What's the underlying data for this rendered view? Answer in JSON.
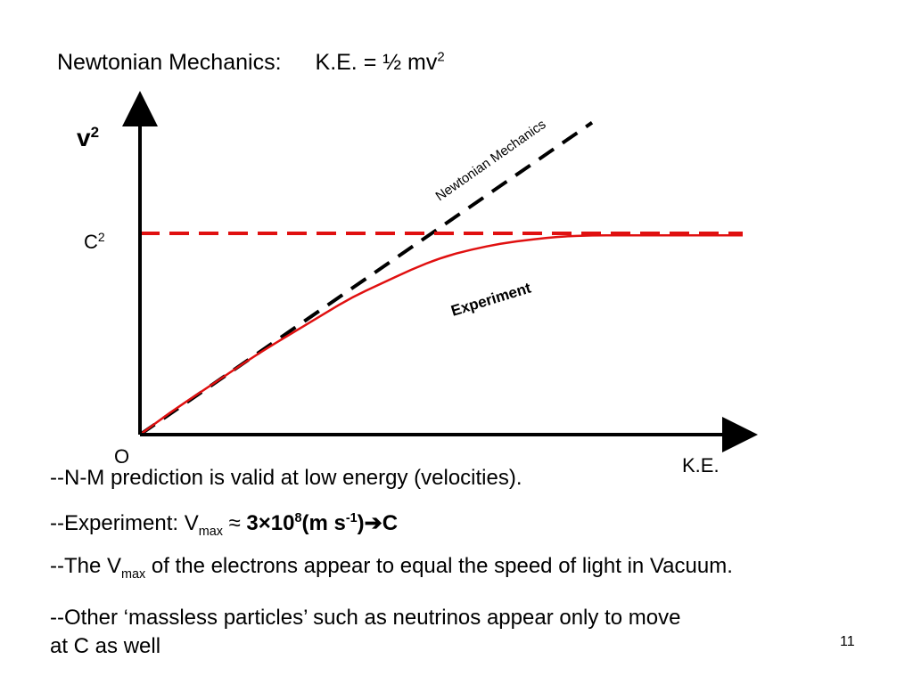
{
  "title": {
    "left": "Newtonian Mechanics:",
    "formula_main": "K.E. = ½ mv",
    "formula_exp": "2"
  },
  "chart_data": {
    "type": "line",
    "title": "",
    "xlabel": "K.E.",
    "ylabel_base": "v",
    "ylabel_exp": "2",
    "origin_label": "O",
    "ytick_label_base": "C",
    "ytick_label_exp": "2",
    "c2_level": 1.0,
    "xlim": [
      0,
      1.0
    ],
    "ylim": [
      0,
      1.55
    ],
    "series": [
      {
        "name": "Newtonian Mechanics",
        "style": "dashed",
        "color": "#000000",
        "x": [
          0,
          0.75
        ],
        "y": [
          0,
          1.55
        ]
      },
      {
        "name": "Experiment",
        "style": "solid",
        "color": "#e01010",
        "x": [
          0,
          0.05,
          0.1,
          0.15,
          0.2,
          0.25,
          0.3,
          0.35,
          0.4,
          0.45,
          0.5,
          0.55,
          0.6,
          0.65,
          0.7,
          0.75,
          0.8,
          0.85,
          0.9,
          1.0
        ],
        "y": [
          0,
          0.11,
          0.21,
          0.31,
          0.41,
          0.5,
          0.59,
          0.68,
          0.75,
          0.82,
          0.88,
          0.92,
          0.95,
          0.97,
          0.985,
          0.99,
          0.99,
          0.99,
          0.99,
          0.99
        ]
      },
      {
        "name": "C2 limit",
        "style": "dashed",
        "color": "#e01010",
        "x": [
          0,
          1.0
        ],
        "y": [
          1.0,
          1.0
        ]
      }
    ],
    "annotations": [
      {
        "text": "Newtonian Mechanics",
        "series": 0
      },
      {
        "text": "Experiment",
        "series": 1
      }
    ]
  },
  "bullets": {
    "b1": "--N-M prediction is valid at low energy (velocities).",
    "b2_prefix": "--Experiment: V",
    "b2_sub": "max",
    "b2_approx": " ≈ ",
    "b2_bold_main": "3×10",
    "b2_bold_exp": "8",
    "b2_bold_unit": "(m s",
    "b2_bold_unit_exp": "-1",
    "b2_bold_close": ")",
    "b2_arrow": "➔",
    "b2_c": "C",
    "b3_prefix": "--The V",
    "b3_sub": "max",
    "b3_rest": " of the electrons appear to equal the speed of light in Vacuum.",
    "b4_line1": "--Other ‘massless particles’ such as neutrinos appear only to move",
    "b4_line2": "at C as well"
  },
  "page_number": "11"
}
